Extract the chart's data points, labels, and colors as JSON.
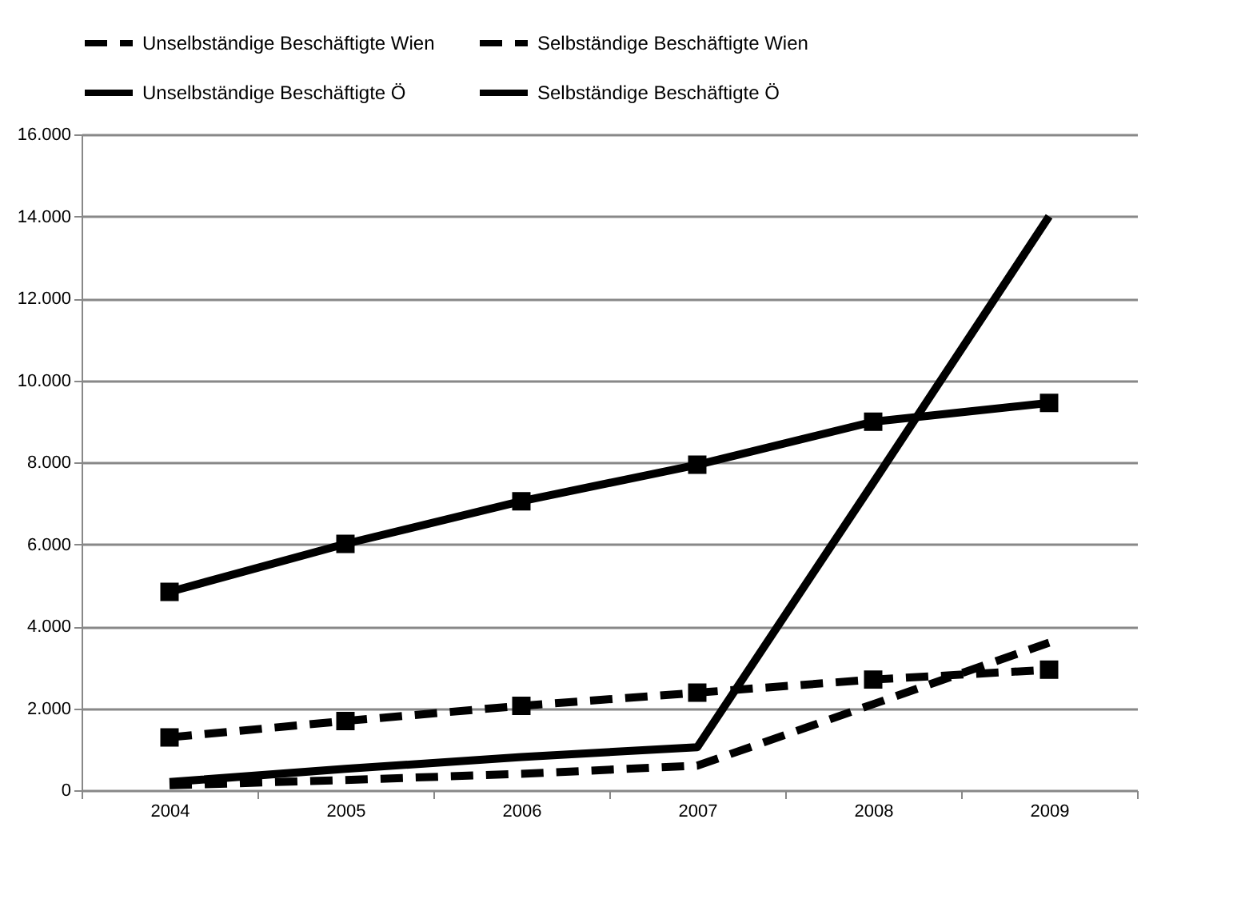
{
  "chart_data": {
    "type": "line",
    "categories": [
      "2004",
      "2005",
      "2006",
      "2007",
      "2008",
      "2009"
    ],
    "series": [
      {
        "name": "Unselbständige Beschäftigte Wien",
        "color": "#000000",
        "marker": "square",
        "line_style": "dashed",
        "values": [
          1290,
          1690,
          2060,
          2380,
          2700,
          2940
        ]
      },
      {
        "name": "Selbständige Beschäftigte Wien",
        "color": "#000000",
        "marker": "none",
        "line_style": "dashed",
        "values": [
          120,
          250,
          400,
          600,
          2100,
          3600
        ]
      },
      {
        "name": "Unselbständige Beschäftigte Ö",
        "color": "#000000",
        "marker": "square",
        "line_style": "solid",
        "values": [
          4840,
          6010,
          7050,
          7940,
          8990,
          9450
        ]
      },
      {
        "name": "Selbständige Beschäftigte Ö",
        "color": "#000000",
        "marker": "none",
        "line_style": "solid",
        "values": [
          200,
          520,
          810,
          1050,
          7500,
          14000
        ]
      }
    ],
    "ylim": [
      0,
      16000
    ],
    "yticks": [
      {
        "value": 0,
        "label": "0"
      },
      {
        "value": 2000,
        "label": "2.000"
      },
      {
        "value": 4000,
        "label": "4.000"
      },
      {
        "value": 6000,
        "label": "6.000"
      },
      {
        "value": 8000,
        "label": "8.000"
      },
      {
        "value": 10000,
        "label": "10.000"
      },
      {
        "value": 12000,
        "label": "12.000"
      },
      {
        "value": 14000,
        "label": "14.000"
      },
      {
        "value": 16000,
        "label": "16.000"
      }
    ],
    "grid": "y",
    "legend": "top"
  }
}
